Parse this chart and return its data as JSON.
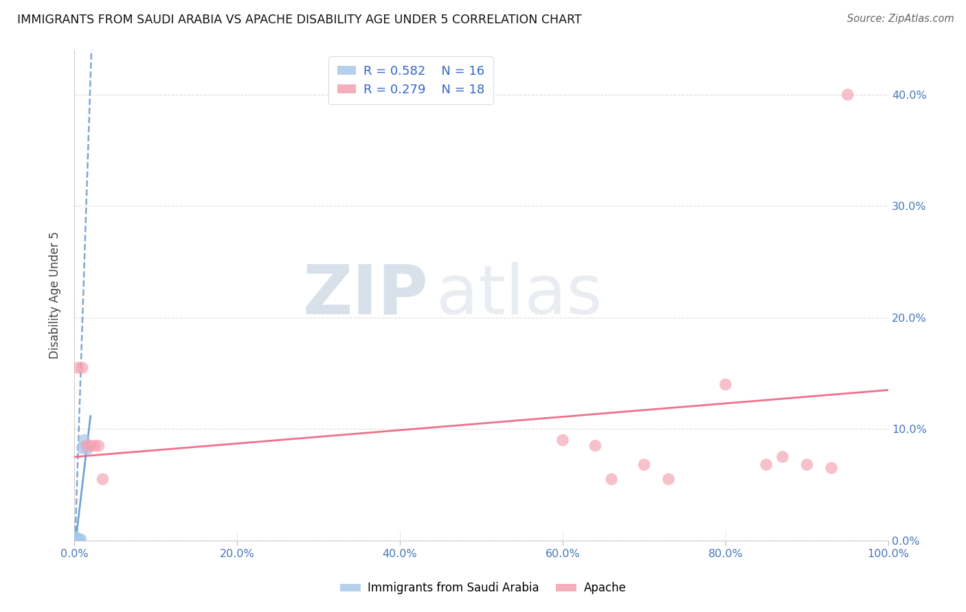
{
  "title": "IMMIGRANTS FROM SAUDI ARABIA VS APACHE DISABILITY AGE UNDER 5 CORRELATION CHART",
  "source": "Source: ZipAtlas.com",
  "ylabel": "Disability Age Under 5",
  "legend_label1": "Immigrants from Saudi Arabia",
  "legend_label2": "Apache",
  "R1": 0.582,
  "N1": 16,
  "R2": 0.279,
  "N2": 18,
  "blue_color": "#a8c8e8",
  "pink_color": "#f4a0b0",
  "blue_line_color": "#6699cc",
  "pink_line_color": "#f06080",
  "xlim": [
    0.0,
    1.0
  ],
  "ylim": [
    0.0,
    0.44
  ],
  "x_ticks": [
    0.0,
    0.2,
    0.4,
    0.6,
    0.8,
    1.0
  ],
  "y_ticks": [
    0.0,
    0.1,
    0.2,
    0.3,
    0.4
  ],
  "saudi_x": [
    0.0,
    0.0,
    0.001,
    0.001,
    0.001,
    0.002,
    0.002,
    0.003,
    0.003,
    0.004,
    0.005,
    0.006,
    0.008,
    0.01,
    0.012,
    0.016
  ],
  "saudi_y": [
    0.0,
    0.001,
    0.0,
    0.002,
    0.0,
    0.001,
    0.003,
    0.001,
    0.0,
    0.0,
    0.0,
    0.001,
    0.001,
    0.083,
    0.09,
    0.082
  ],
  "apache_x": [
    0.005,
    0.01,
    0.015,
    0.02,
    0.025,
    0.03,
    0.035,
    0.6,
    0.64,
    0.66,
    0.7,
    0.73,
    0.8,
    0.85,
    0.87,
    0.9,
    0.93,
    0.95
  ],
  "apache_y": [
    0.155,
    0.155,
    0.085,
    0.085,
    0.085,
    0.085,
    0.055,
    0.09,
    0.085,
    0.055,
    0.068,
    0.055,
    0.14,
    0.068,
    0.075,
    0.068,
    0.065,
    0.4
  ],
  "blue_slope": 22.0,
  "blue_intercept": -0.025,
  "pink_slope": 0.06,
  "pink_intercept": 0.075
}
